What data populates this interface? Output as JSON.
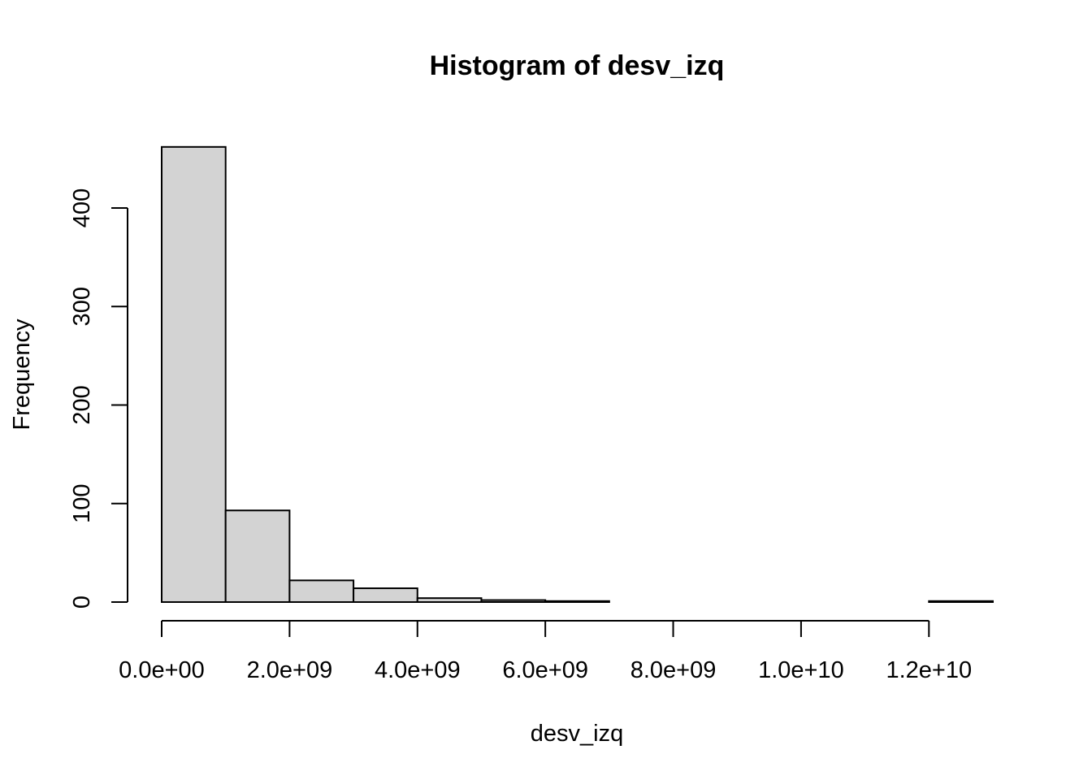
{
  "chart_data": {
    "type": "bar",
    "title": "Histogram of desv_izq",
    "xlabel": "desv_izq",
    "ylabel": "Frequency",
    "bin_edges": [
      0,
      1000000000.0,
      2000000000.0,
      3000000000.0,
      4000000000.0,
      5000000000.0,
      6000000000.0,
      7000000000.0,
      8000000000.0,
      9000000000.0,
      10000000000.0,
      11000000000.0,
      12000000000.0,
      13000000000.0
    ],
    "values": [
      462,
      93,
      22,
      14,
      4,
      2,
      1,
      0,
      0,
      0,
      0,
      0,
      1
    ],
    "xlim": [
      0,
      13000000000.0
    ],
    "ylim": [
      0,
      462
    ],
    "x_ticks": [
      0,
      2000000000.0,
      4000000000.0,
      6000000000.0,
      8000000000.0,
      10000000000.0,
      12000000000.0
    ],
    "x_tick_labels": [
      "0.0e+00",
      "2.0e+09",
      "4.0e+09",
      "6.0e+09",
      "8.0e+09",
      "1.0e+10",
      "1.2e+10"
    ],
    "y_ticks": [
      0,
      100,
      200,
      300,
      400
    ],
    "y_tick_labels": [
      "0",
      "100",
      "200",
      "300",
      "400"
    ],
    "bar_color": "#d3d3d3",
    "grid": false
  }
}
